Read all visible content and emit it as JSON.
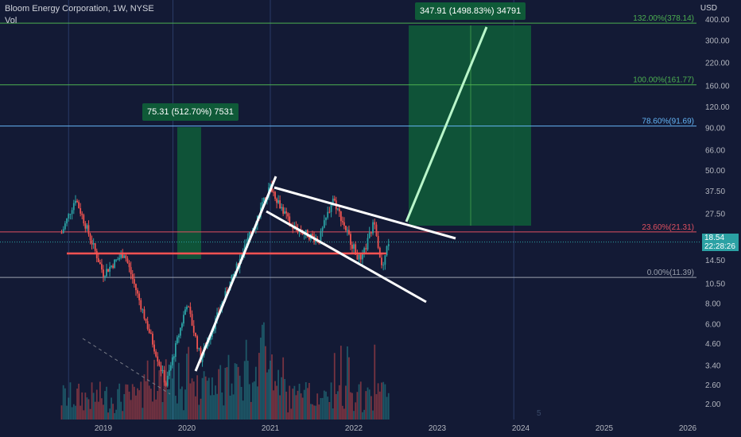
{
  "header": {
    "title": "Bloom Energy Corporation, 1W, NYSE",
    "vol_label": "Vol",
    "currency": "USD"
  },
  "price_box": {
    "price": "18.54",
    "countdown": "22:28:26"
  },
  "annotations": {
    "upper_target": "347.91 (1498.83%) 34791",
    "lower_target": "75.31 (512.70%) 7531"
  },
  "tv_logo": "5",
  "colors": {
    "background": "#131a35",
    "up": "#2ba1a4",
    "down": "#ef5350",
    "fib_green": "#4caf50",
    "fib_blue": "#64b5f6",
    "fib_red": "#e05060",
    "fib_gray": "#9aa0ad",
    "target_box": "#0f5a38",
    "trendline": "#ffffff",
    "projection": "#b9f6ca",
    "support": "#ff5252"
  },
  "chart_data": {
    "type": "candlestick",
    "title": "Bloom Energy Corporation, 1W, NYSE",
    "y_scale": "log",
    "y_axis_ticks": [
      "400.00",
      "300.00",
      "220.00",
      "160.00",
      "120.00",
      "90.00",
      "66.00",
      "50.00",
      "37.50",
      "27.50",
      "20.00",
      "14.50",
      "10.50",
      "8.00",
      "6.00",
      "4.60",
      "3.40",
      "2.60",
      "2.00"
    ],
    "x_axis_ticks": [
      "2019",
      "2020",
      "2021",
      "2022",
      "2023",
      "2024",
      "2025",
      "2026"
    ],
    "last_price": 18.54,
    "fib_levels": [
      {
        "label": "132.00%(378.14)",
        "value": 378.14
      },
      {
        "label": "100.00%(161.77)",
        "value": 161.77
      },
      {
        "label": "78.60%(91.69)",
        "value": 91.69
      },
      {
        "label": "23.60%(21.31)",
        "value": 21.31
      },
      {
        "label": "0.00%(11.39)",
        "value": 11.39
      }
    ],
    "support_level": 16.0,
    "projections": [
      {
        "label": "347.91 (1498.83%) 34791",
        "change": 347.91,
        "percent": 1498.83
      },
      {
        "label": "75.31 (512.70%) 7531",
        "change": 75.31,
        "percent": 512.7
      }
    ],
    "key_points": [
      {
        "date": "2018-07",
        "price": 21
      },
      {
        "date": "2018-09",
        "price": 34
      },
      {
        "date": "2019-01",
        "price": 12
      },
      {
        "date": "2019-04",
        "price": 16
      },
      {
        "date": "2019-10",
        "price": 2.6
      },
      {
        "date": "2020-01",
        "price": 8
      },
      {
        "date": "2020-03",
        "price": 3.7
      },
      {
        "date": "2020-07",
        "price": 10
      },
      {
        "date": "2020-10",
        "price": 20
      },
      {
        "date": "2021-01",
        "price": 40
      },
      {
        "date": "2021-04",
        "price": 23
      },
      {
        "date": "2021-08",
        "price": 19
      },
      {
        "date": "2021-10",
        "price": 34
      },
      {
        "date": "2022-01",
        "price": 17
      },
      {
        "date": "2022-02",
        "price": 14
      },
      {
        "date": "2022-04",
        "price": 25
      },
      {
        "date": "2022-05",
        "price": 13
      },
      {
        "date": "2022-06",
        "price": 18.54
      }
    ]
  }
}
